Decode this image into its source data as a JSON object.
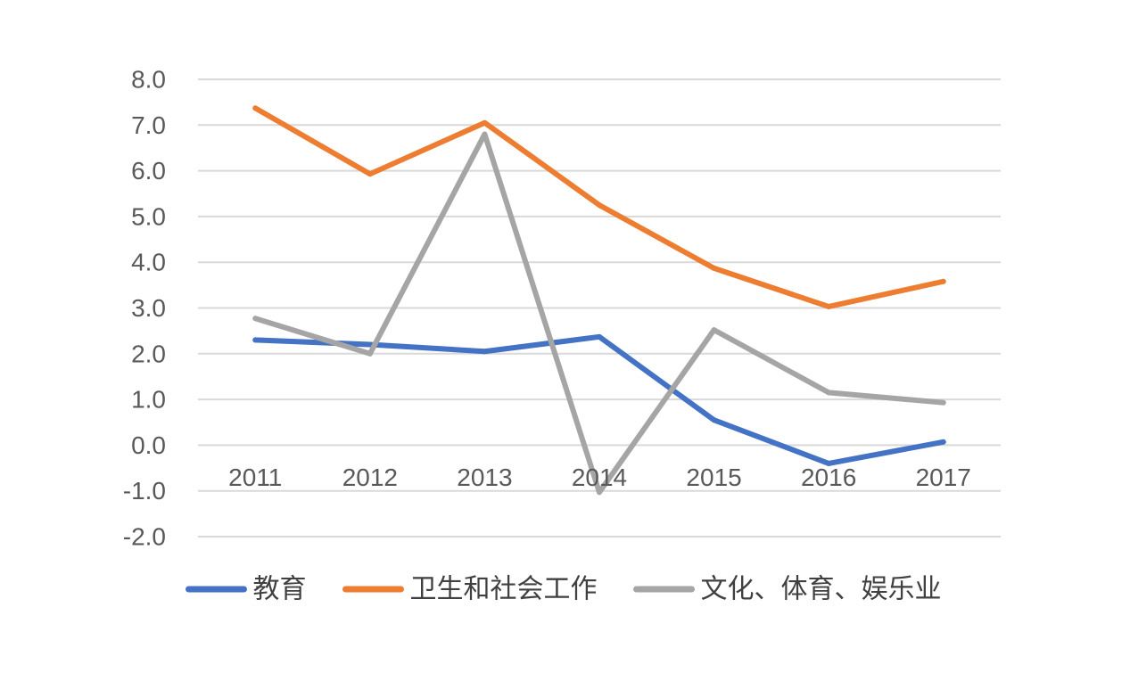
{
  "chart_data": {
    "type": "line",
    "title": "",
    "xlabel": "",
    "ylabel": "",
    "categories": [
      "2011",
      "2012",
      "2013",
      "2014",
      "2015",
      "2016",
      "2017"
    ],
    "ylim": [
      -2.0,
      8.0
    ],
    "yticks": [
      "8.0",
      "7.0",
      "6.0",
      "5.0",
      "4.0",
      "3.0",
      "2.0",
      "1.0",
      "0.0",
      "-1.0",
      "-2.0"
    ],
    "grid": true,
    "legend_position": "bottom",
    "series": [
      {
        "name": "教育",
        "color": "#4472c4",
        "values": [
          2.3,
          2.2,
          2.05,
          2.37,
          0.55,
          -0.4,
          0.07
        ]
      },
      {
        "name": "卫生和社会工作",
        "color": "#ed7d31",
        "values": [
          7.37,
          5.93,
          7.05,
          5.25,
          3.87,
          3.03,
          3.58
        ]
      },
      {
        "name": "文化、体育、娱乐业",
        "color": "#a5a5a5",
        "values": [
          2.77,
          2.0,
          6.8,
          -1.03,
          2.52,
          1.15,
          0.93
        ]
      }
    ]
  }
}
